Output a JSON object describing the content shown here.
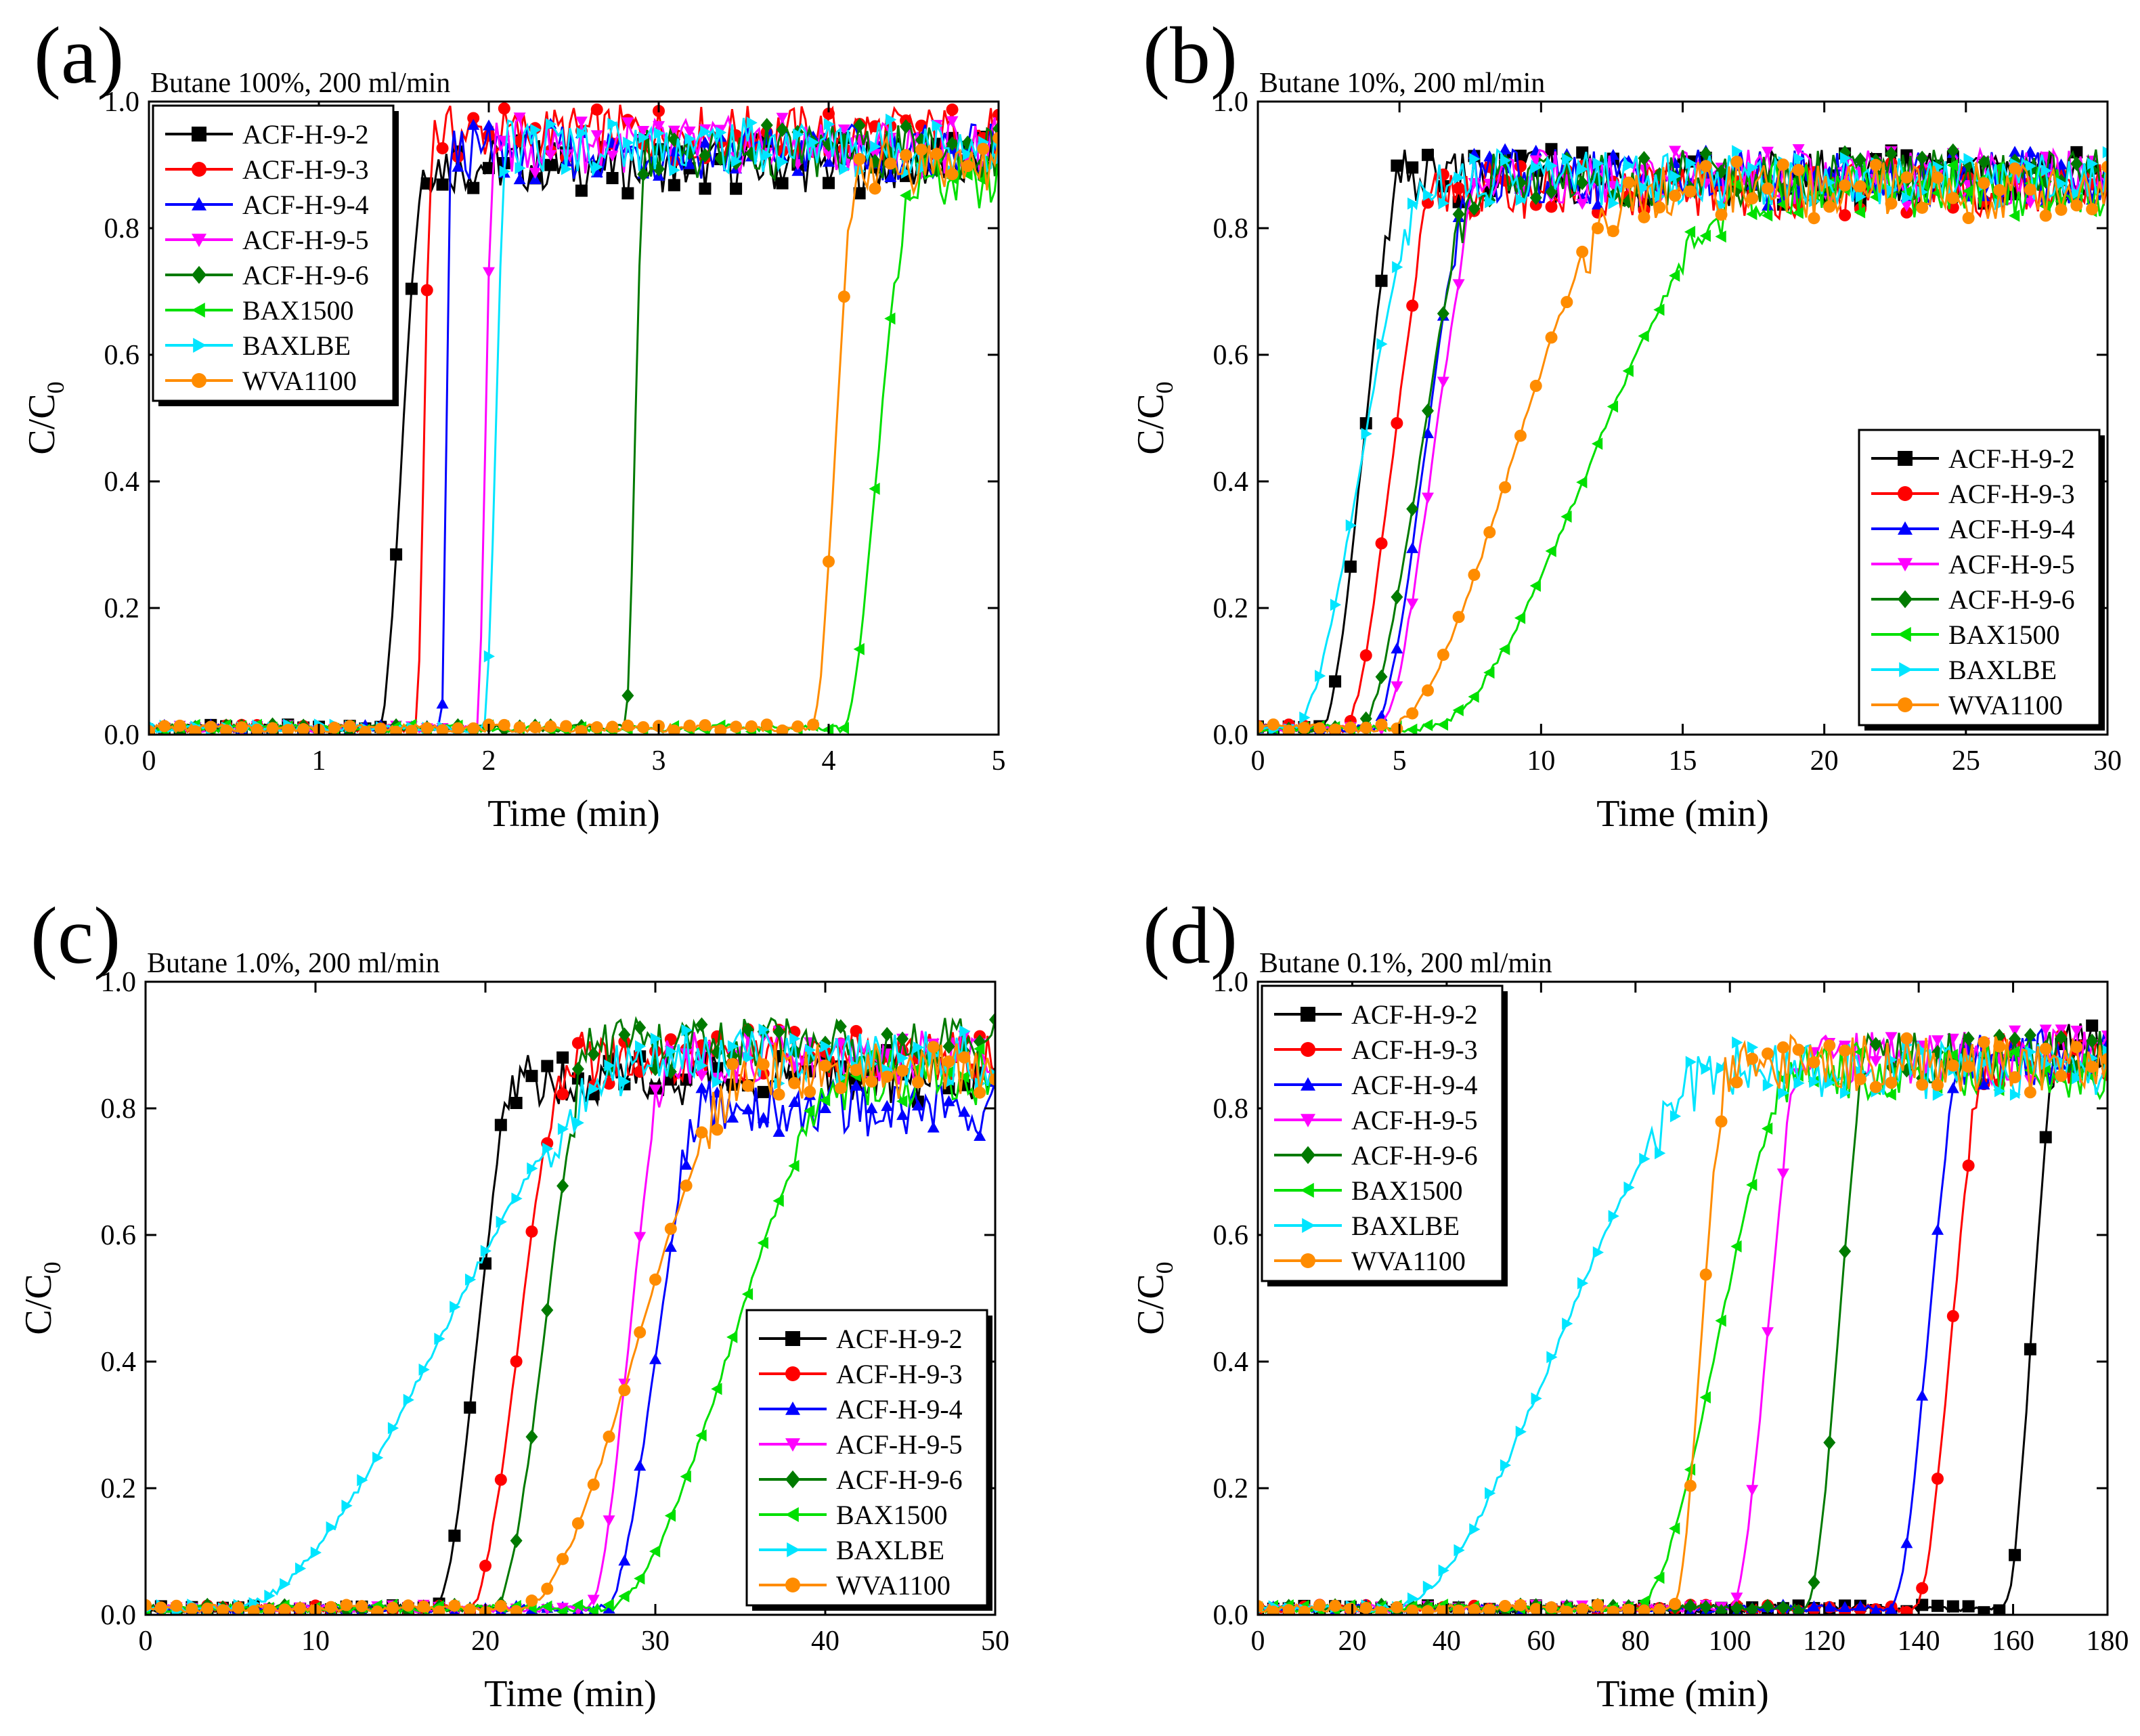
{
  "figure": {
    "panel_count": 4
  },
  "chart_data": [
    {
      "type": "line",
      "panel_label": "(a)",
      "title": "Butane 100%, 200 ml/min",
      "xlabel": "Time (min)",
      "ylabel": "C/C",
      "ylabel_subscript": "0",
      "xlim": [
        0,
        5
      ],
      "ylim": [
        0,
        1.0
      ],
      "xticks": [
        0,
        1,
        2,
        3,
        4,
        5
      ],
      "xtick_labels": [
        "0",
        "1",
        "2",
        "3",
        "4",
        "5"
      ],
      "yticks": [
        0,
        0.2,
        0.4,
        0.6,
        0.8,
        1.0
      ],
      "ytick_labels": [
        "0.0",
        "0.2",
        "0.4",
        "0.6",
        "0.8",
        "1.0"
      ],
      "legend_position": "top-left",
      "series": [
        {
          "name": "ACF-H-9-2",
          "color": "#000000",
          "marker": "square",
          "breakthrough": 1.35,
          "rise": 0.28,
          "plateau": 0.9
        },
        {
          "name": "ACF-H-9-3",
          "color": "#ff0000",
          "marker": "circle",
          "breakthrough": 1.57,
          "rise": 0.1,
          "plateau": 0.95
        },
        {
          "name": "ACF-H-9-4",
          "color": "#0000ff",
          "marker": "triangle-up",
          "breakthrough": 1.72,
          "rise": 0.06,
          "plateau": 0.92
        },
        {
          "name": "ACF-H-9-5",
          "color": "#ff00ff",
          "marker": "triangle-down",
          "breakthrough": 1.93,
          "rise": 0.1,
          "plateau": 0.93
        },
        {
          "name": "ACF-H-9-6",
          "color": "#007a00",
          "marker": "diamond",
          "breakthrough": 2.8,
          "rise": 0.12,
          "plateau": 0.92
        },
        {
          "name": "BAX1500",
          "color": "#00e000",
          "marker": "triangle-left",
          "breakthrough": 4.08,
          "rise": 0.42,
          "plateau": 0.87
        },
        {
          "name": "BAXLBE",
          "color": "#00e5ff",
          "marker": "triangle-right",
          "breakthrough": 1.97,
          "rise": 0.14,
          "plateau": 0.93
        },
        {
          "name": "WVA1100",
          "color": "#ff8c00",
          "marker": "circle",
          "breakthrough": 3.9,
          "rise": 0.28,
          "plateau": 0.9
        }
      ]
    },
    {
      "type": "line",
      "panel_label": "(b)",
      "title": "Butane 10%, 200 ml/min",
      "xlabel": "Time (min)",
      "ylabel": "C/C",
      "ylabel_subscript": "0",
      "xlim": [
        0,
        30
      ],
      "ylim": [
        0,
        1.0
      ],
      "xticks": [
        0,
        5,
        10,
        15,
        20,
        25,
        30
      ],
      "xtick_labels": [
        "0",
        "5",
        "10",
        "15",
        "20",
        "25",
        "30"
      ],
      "yticks": [
        0,
        0.2,
        0.4,
        0.6,
        0.8,
        1.0
      ],
      "ytick_labels": [
        "0.0",
        "0.2",
        "0.4",
        "0.6",
        "0.8",
        "1.0"
      ],
      "legend_position": "bottom-right",
      "series": [
        {
          "name": "ACF-H-9-2",
          "color": "#000000",
          "marker": "square",
          "breakthrough": 2.2,
          "rise": 3.0,
          "plateau": 0.88
        },
        {
          "name": "ACF-H-9-3",
          "color": "#ff0000",
          "marker": "circle",
          "breakthrough": 3.0,
          "rise": 3.5,
          "plateau": 0.86
        },
        {
          "name": "ACF-H-9-4",
          "color": "#0000ff",
          "marker": "triangle-up",
          "breakthrough": 4.0,
          "rise": 3.8,
          "plateau": 0.88
        },
        {
          "name": "ACF-H-9-5",
          "color": "#ff00ff",
          "marker": "triangle-down",
          "breakthrough": 4.2,
          "rise": 4.0,
          "plateau": 0.88
        },
        {
          "name": "ACF-H-9-6",
          "color": "#007a00",
          "marker": "diamond",
          "breakthrough": 3.5,
          "rise": 4.5,
          "plateau": 0.88
        },
        {
          "name": "BAX1500",
          "color": "#00e000",
          "marker": "triangle-left",
          "breakthrough": 5.8,
          "rise": 12.0,
          "plateau": 0.86
        },
        {
          "name": "BAXLBE",
          "color": "#00e5ff",
          "marker": "triangle-right",
          "breakthrough": 1.2,
          "rise": 5.0,
          "plateau": 0.88
        },
        {
          "name": "WVA1100",
          "color": "#ff8c00",
          "marker": "circle",
          "breakthrough": 4.5,
          "rise": 9.0,
          "plateau": 0.86
        }
      ]
    },
    {
      "type": "line",
      "panel_label": "(c)",
      "title": "Butane 1.0%, 200 ml/min",
      "xlabel": "Time (min)",
      "ylabel": "C/C",
      "ylabel_subscript": "0",
      "xlim": [
        0,
        50
      ],
      "ylim": [
        0,
        1.0
      ],
      "xticks": [
        0,
        10,
        20,
        30,
        40,
        50
      ],
      "xtick_labels": [
        "0",
        "10",
        "20",
        "30",
        "40",
        "50"
      ],
      "yticks": [
        0,
        0.2,
        0.4,
        0.6,
        0.8,
        1.0
      ],
      "ytick_labels": [
        "0.0",
        "0.2",
        "0.4",
        "0.6",
        "0.8",
        "1.0"
      ],
      "legend_position": "bottom-right",
      "series": [
        {
          "name": "ACF-H-9-2",
          "color": "#000000",
          "marker": "square",
          "breakthrough": 17.0,
          "rise": 5.0,
          "plateau": 0.85
        },
        {
          "name": "ACF-H-9-3",
          "color": "#ff0000",
          "marker": "circle",
          "breakthrough": 19.0,
          "rise": 6.0,
          "plateau": 0.88
        },
        {
          "name": "ACF-H-9-4",
          "color": "#0000ff",
          "marker": "triangle-up",
          "breakthrough": 27.0,
          "rise": 6.0,
          "plateau": 0.8
        },
        {
          "name": "ACF-H-9-5",
          "color": "#ff00ff",
          "marker": "triangle-down",
          "breakthrough": 26.0,
          "rise": 5.0,
          "plateau": 0.88
        },
        {
          "name": "ACF-H-9-6",
          "color": "#007a00",
          "marker": "diamond",
          "breakthrough": 20.5,
          "rise": 6.0,
          "plateau": 0.9
        },
        {
          "name": "BAX1500",
          "color": "#00e000",
          "marker": "triangle-left",
          "breakthrough": 27.0,
          "rise": 15.0,
          "plateau": 0.85
        },
        {
          "name": "BAXLBE",
          "color": "#00e5ff",
          "marker": "triangle-right",
          "breakthrough": 5.0,
          "rise": 25.0,
          "plateau": 0.88
        },
        {
          "name": "WVA1100",
          "color": "#ff8c00",
          "marker": "circle",
          "breakthrough": 22.0,
          "rise": 14.0,
          "plateau": 0.86
        }
      ]
    },
    {
      "type": "line",
      "panel_label": "(d)",
      "title": "Butane 0.1%, 200 ml/min",
      "xlabel": "Time (min)",
      "ylabel": "C/C",
      "ylabel_subscript": "0",
      "xlim": [
        0,
        180
      ],
      "ylim": [
        0,
        1.0
      ],
      "xticks": [
        0,
        20,
        40,
        60,
        80,
        100,
        120,
        140,
        160,
        180
      ],
      "xtick_labels": [
        "0",
        "20",
        "40",
        "60",
        "80",
        "100",
        "120",
        "140",
        "160",
        "180"
      ],
      "yticks": [
        0,
        0.2,
        0.4,
        0.6,
        0.8,
        1.0
      ],
      "ytick_labels": [
        "0.0",
        "0.2",
        "0.4",
        "0.6",
        "0.8",
        "1.0"
      ],
      "legend_position": "top-left",
      "series": [
        {
          "name": "ACF-H-9-2",
          "color": "#000000",
          "marker": "square",
          "breakthrough": 158.0,
          "rise": 12.0,
          "plateau": 0.9
        },
        {
          "name": "ACF-H-9-3",
          "color": "#ff0000",
          "marker": "circle",
          "breakthrough": 139.0,
          "rise": 16.0,
          "plateau": 0.88
        },
        {
          "name": "ACF-H-9-4",
          "color": "#0000ff",
          "marker": "triangle-up",
          "breakthrough": 134.0,
          "rise": 16.0,
          "plateau": 0.88
        },
        {
          "name": "ACF-H-9-5",
          "color": "#ff00ff",
          "marker": "triangle-down",
          "breakthrough": 100.0,
          "rise": 16.0,
          "plateau": 0.88
        },
        {
          "name": "ACF-H-9-6",
          "color": "#007a00",
          "marker": "diamond",
          "breakthrough": 116.0,
          "rise": 14.0,
          "plateau": 0.88
        },
        {
          "name": "BAX1500",
          "color": "#00e000",
          "marker": "triangle-left",
          "breakthrough": 80.0,
          "rise": 35.0,
          "plateau": 0.86
        },
        {
          "name": "BAXLBE",
          "color": "#00e5ff",
          "marker": "triangle-right",
          "breakthrough": 28.0,
          "rise": 72.0,
          "plateau": 0.86
        },
        {
          "name": "WVA1100",
          "color": "#ff8c00",
          "marker": "circle",
          "breakthrough": 88.0,
          "rise": 12.0,
          "plateau": 0.87
        }
      ]
    }
  ]
}
